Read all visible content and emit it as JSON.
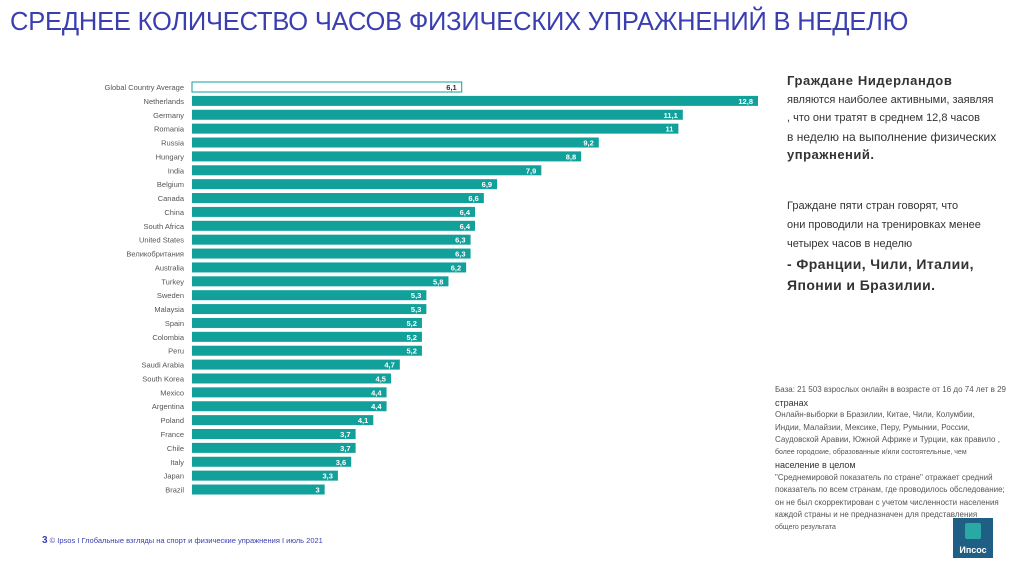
{
  "title": "СРЕДНЕЕ КОЛИЧЕСТВО ЧАСОВ ФИЗИЧЕСКИХ УПРАЖНЕНИЙ В НЕДЕЛЮ",
  "colors": {
    "bar": "#12a09b",
    "average_outline": "#12a09b",
    "title": "#3a3eb0"
  },
  "chart_data": {
    "type": "bar",
    "orientation": "horizontal",
    "title": "",
    "xlabel": "",
    "ylabel": "",
    "xlim": [
      0,
      12.8
    ],
    "grid": false,
    "categories": [
      "Global Country Average",
      "Netherlands",
      "Germany",
      "Romania",
      "Russia",
      "Hungary",
      "India",
      "Belgium",
      "Canada",
      "China",
      "South Africa",
      "United States",
      "Великобритания",
      "Australia",
      "Turkey",
      "Sweden",
      "Malaysia",
      "Spain",
      "Colombia",
      "Peru",
      "Saudi Arabia",
      "South Korea",
      "Mexico",
      "Argentina",
      "Poland",
      "France",
      "Chile",
      "Italy",
      "Japan",
      "Brazil"
    ],
    "values": [
      6.1,
      12.8,
      11.1,
      11,
      9.2,
      8.8,
      7.9,
      6.9,
      6.6,
      6.4,
      6.4,
      6.3,
      6.3,
      6.2,
      5.8,
      5.3,
      5.3,
      5.2,
      5.2,
      5.2,
      4.7,
      4.5,
      4.4,
      4.4,
      4.1,
      3.7,
      3.7,
      3.6,
      3.3,
      3
    ],
    "value_labels": [
      "6,1",
      "12,8",
      "11,1",
      "11",
      "9,2",
      "8,8",
      "7,9",
      "6,9",
      "6,6",
      "6,4",
      "6,4",
      "6,3",
      "6,3",
      "6,2",
      "5,8",
      "5,3",
      "5,3",
      "5,2",
      "5,2",
      "5,2",
      "4,7",
      "4,5",
      "4,4",
      "4,4",
      "4,1",
      "3,7",
      "3,7",
      "3,6",
      "3,3",
      "3"
    ],
    "highlight": {
      "index": 0,
      "style": "outline"
    }
  },
  "note1": {
    "line1": "Граждане Нидерландов",
    "line2": "являются наиболее активными, заявляя",
    "line3": ", что они тратят в среднем 12,8 часов",
    "line4": "в неделю на выполнение физических",
    "line5": "упражнений."
  },
  "note2": {
    "line1": "Граждане пяти стран говорят, что",
    "line2": "они проводили на тренировках менее",
    "line3": "четырех часов в неделю",
    "line4": "- Франции, Чили, Италии,",
    "line5": "Японии и Бразилии."
  },
  "base_note": {
    "line1": "База: 21 503 взрослых онлайн в возрасте от 16 до 74 лет в 29",
    "line2": "странах",
    "line3": "Онлайн-выборки в Бразилии, Китае, Чили, Колумбии,",
    "line4": "Индии, Малайзии, Мексике, Перу, Румынии, России,",
    "line5": "Саудовской Аравии, Южной Африке и Турции, как правило ,",
    "line6": "более городские, образованные и/или состоятельные, чем",
    "line7": "население в целом",
    "line8": "\"Среднемировой показатель по стране\" отражает средний",
    "line9": "показатель по всем странам, где проводилось обследование;",
    "line10": "он не был скорректирован с учетом численности населения",
    "line11": "каждой страны и не предназначен для представления",
    "line12": "общего результата"
  },
  "footer": {
    "page_number": "3",
    "text": "© Ipsos I Глобальные взгляды на спорт и физические упражнения I июль 2021"
  },
  "logo": {
    "text": "Ипсос"
  }
}
